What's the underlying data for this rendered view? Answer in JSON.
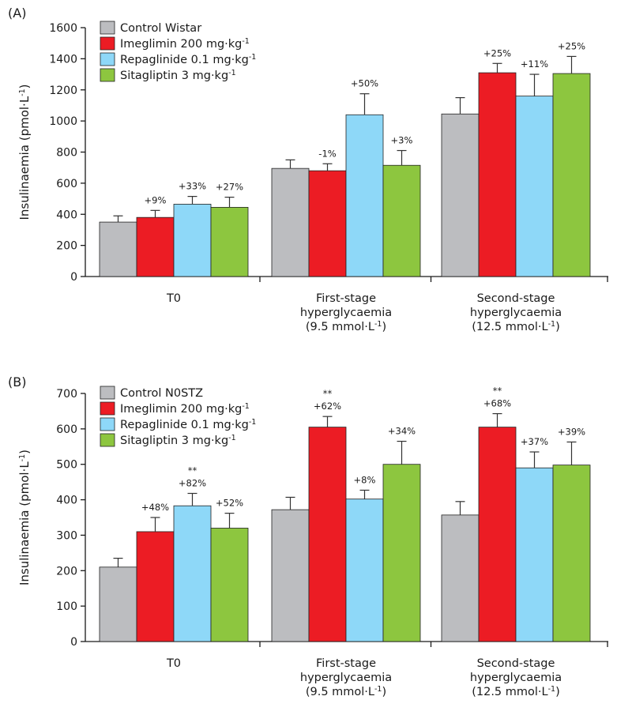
{
  "chart_data": [
    {
      "type": "bar",
      "panel_label": "(A)",
      "ylabel": "Insulinaemia (pmol·L",
      "ylabel_sup": "-1",
      "ylabel_end": ")",
      "ylim": [
        0,
        1600
      ],
      "yticks": [
        0,
        200,
        400,
        600,
        800,
        1000,
        1200,
        1400,
        1600
      ],
      "legend_position": "top-left",
      "categories": [
        {
          "lines": [
            {
              "t": "T0"
            }
          ]
        },
        {
          "lines": [
            {
              "t": "First-stage"
            },
            {
              "t": "hyperglycaemia"
            },
            {
              "t": "(9.5 mmol·L",
              "sup": "-1",
              "end": ")"
            }
          ]
        },
        {
          "lines": [
            {
              "t": "Second-stage"
            },
            {
              "t": "hyperglycaemia"
            },
            {
              "t": "(12.5 mmol·L",
              "sup": "-1",
              "end": ")"
            }
          ]
        }
      ],
      "series": [
        {
          "name": "Control Wistar",
          "name_sup": "",
          "color": "#bcbdc0",
          "values": [
            350,
            695,
            1045
          ],
          "errors": [
            40,
            55,
            105
          ],
          "annotations": [
            "",
            "",
            ""
          ],
          "stars": [
            "",
            "",
            ""
          ]
        },
        {
          "name": "Imeglimin 200 mg·kg",
          "name_sup": "-1",
          "color": "#ec1c24",
          "values": [
            380,
            680,
            1310
          ],
          "errors": [
            45,
            45,
            60
          ],
          "annotations": [
            "+9%",
            "-1%",
            "+25%"
          ],
          "stars": [
            "",
            "",
            ""
          ]
        },
        {
          "name": "Repaglinide 0.1 mg·kg",
          "name_sup": "-1",
          "color": "#8ed8f8",
          "values": [
            465,
            1040,
            1160
          ],
          "errors": [
            50,
            135,
            140
          ],
          "annotations": [
            "+33%",
            "+50%",
            "+11%"
          ],
          "stars": [
            "",
            "",
            ""
          ]
        },
        {
          "name": "Sitagliptin 3 mg·kg",
          "name_sup": "-1",
          "color": "#8dc63f",
          "values": [
            445,
            715,
            1305
          ],
          "errors": [
            65,
            95,
            110
          ],
          "annotations": [
            "+27%",
            "+3%",
            "+25%"
          ],
          "stars": [
            "",
            "",
            ""
          ]
        }
      ]
    },
    {
      "type": "bar",
      "panel_label": "(B)",
      "ylabel": "Insulinaemia (pmol·L",
      "ylabel_sup": "-1",
      "ylabel_end": ")",
      "ylim": [
        0,
        700
      ],
      "yticks": [
        0,
        100,
        200,
        300,
        400,
        500,
        600,
        700
      ],
      "legend_position": "top-left",
      "categories": [
        {
          "lines": [
            {
              "t": "T0"
            }
          ]
        },
        {
          "lines": [
            {
              "t": "First-stage"
            },
            {
              "t": "hyperglycaemia"
            },
            {
              "t": "(9.5 mmol·L",
              "sup": "-1",
              "end": ")"
            }
          ]
        },
        {
          "lines": [
            {
              "t": "Second-stage"
            },
            {
              "t": "hyperglycaemia"
            },
            {
              "t": "(12.5 mmol·L",
              "sup": "-1",
              "end": ")"
            }
          ]
        }
      ],
      "series": [
        {
          "name": "Control N0STZ",
          "name_sup": "",
          "color": "#bcbdc0",
          "values": [
            210,
            372,
            357
          ],
          "errors": [
            25,
            35,
            38
          ],
          "annotations": [
            "",
            "",
            ""
          ],
          "stars": [
            "",
            "",
            ""
          ]
        },
        {
          "name": "Imeglimin 200 mg·kg",
          "name_sup": "-1",
          "color": "#ec1c24",
          "values": [
            310,
            605,
            605
          ],
          "errors": [
            40,
            30,
            38
          ],
          "annotations": [
            "+48%",
            "+62%",
            "+68%"
          ],
          "stars": [
            "",
            "**",
            "**"
          ]
        },
        {
          "name": "Repaglinide 0.1 mg·kg",
          "name_sup": "-1",
          "color": "#8ed8f8",
          "values": [
            383,
            402,
            490
          ],
          "errors": [
            35,
            25,
            45
          ],
          "annotations": [
            "+82%",
            "+8%",
            "+37%"
          ],
          "stars": [
            "**",
            "",
            ""
          ]
        },
        {
          "name": "Sitagliptin 3 mg·kg",
          "name_sup": "-1",
          "color": "#8dc63f",
          "values": [
            320,
            500,
            498
          ],
          "errors": [
            42,
            65,
            65
          ],
          "annotations": [
            "+52%",
            "+34%",
            "+39%"
          ],
          "stars": [
            "",
            "",
            ""
          ]
        }
      ]
    }
  ]
}
